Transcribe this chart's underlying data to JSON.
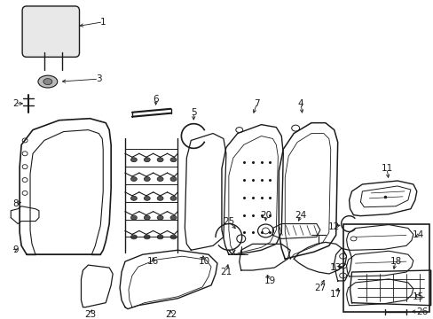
{
  "bg_color": "#ffffff",
  "line_color": "#1a1a1a",
  "fig_width": 4.89,
  "fig_height": 3.6,
  "dpi": 100,
  "label_fs": 7.5
}
